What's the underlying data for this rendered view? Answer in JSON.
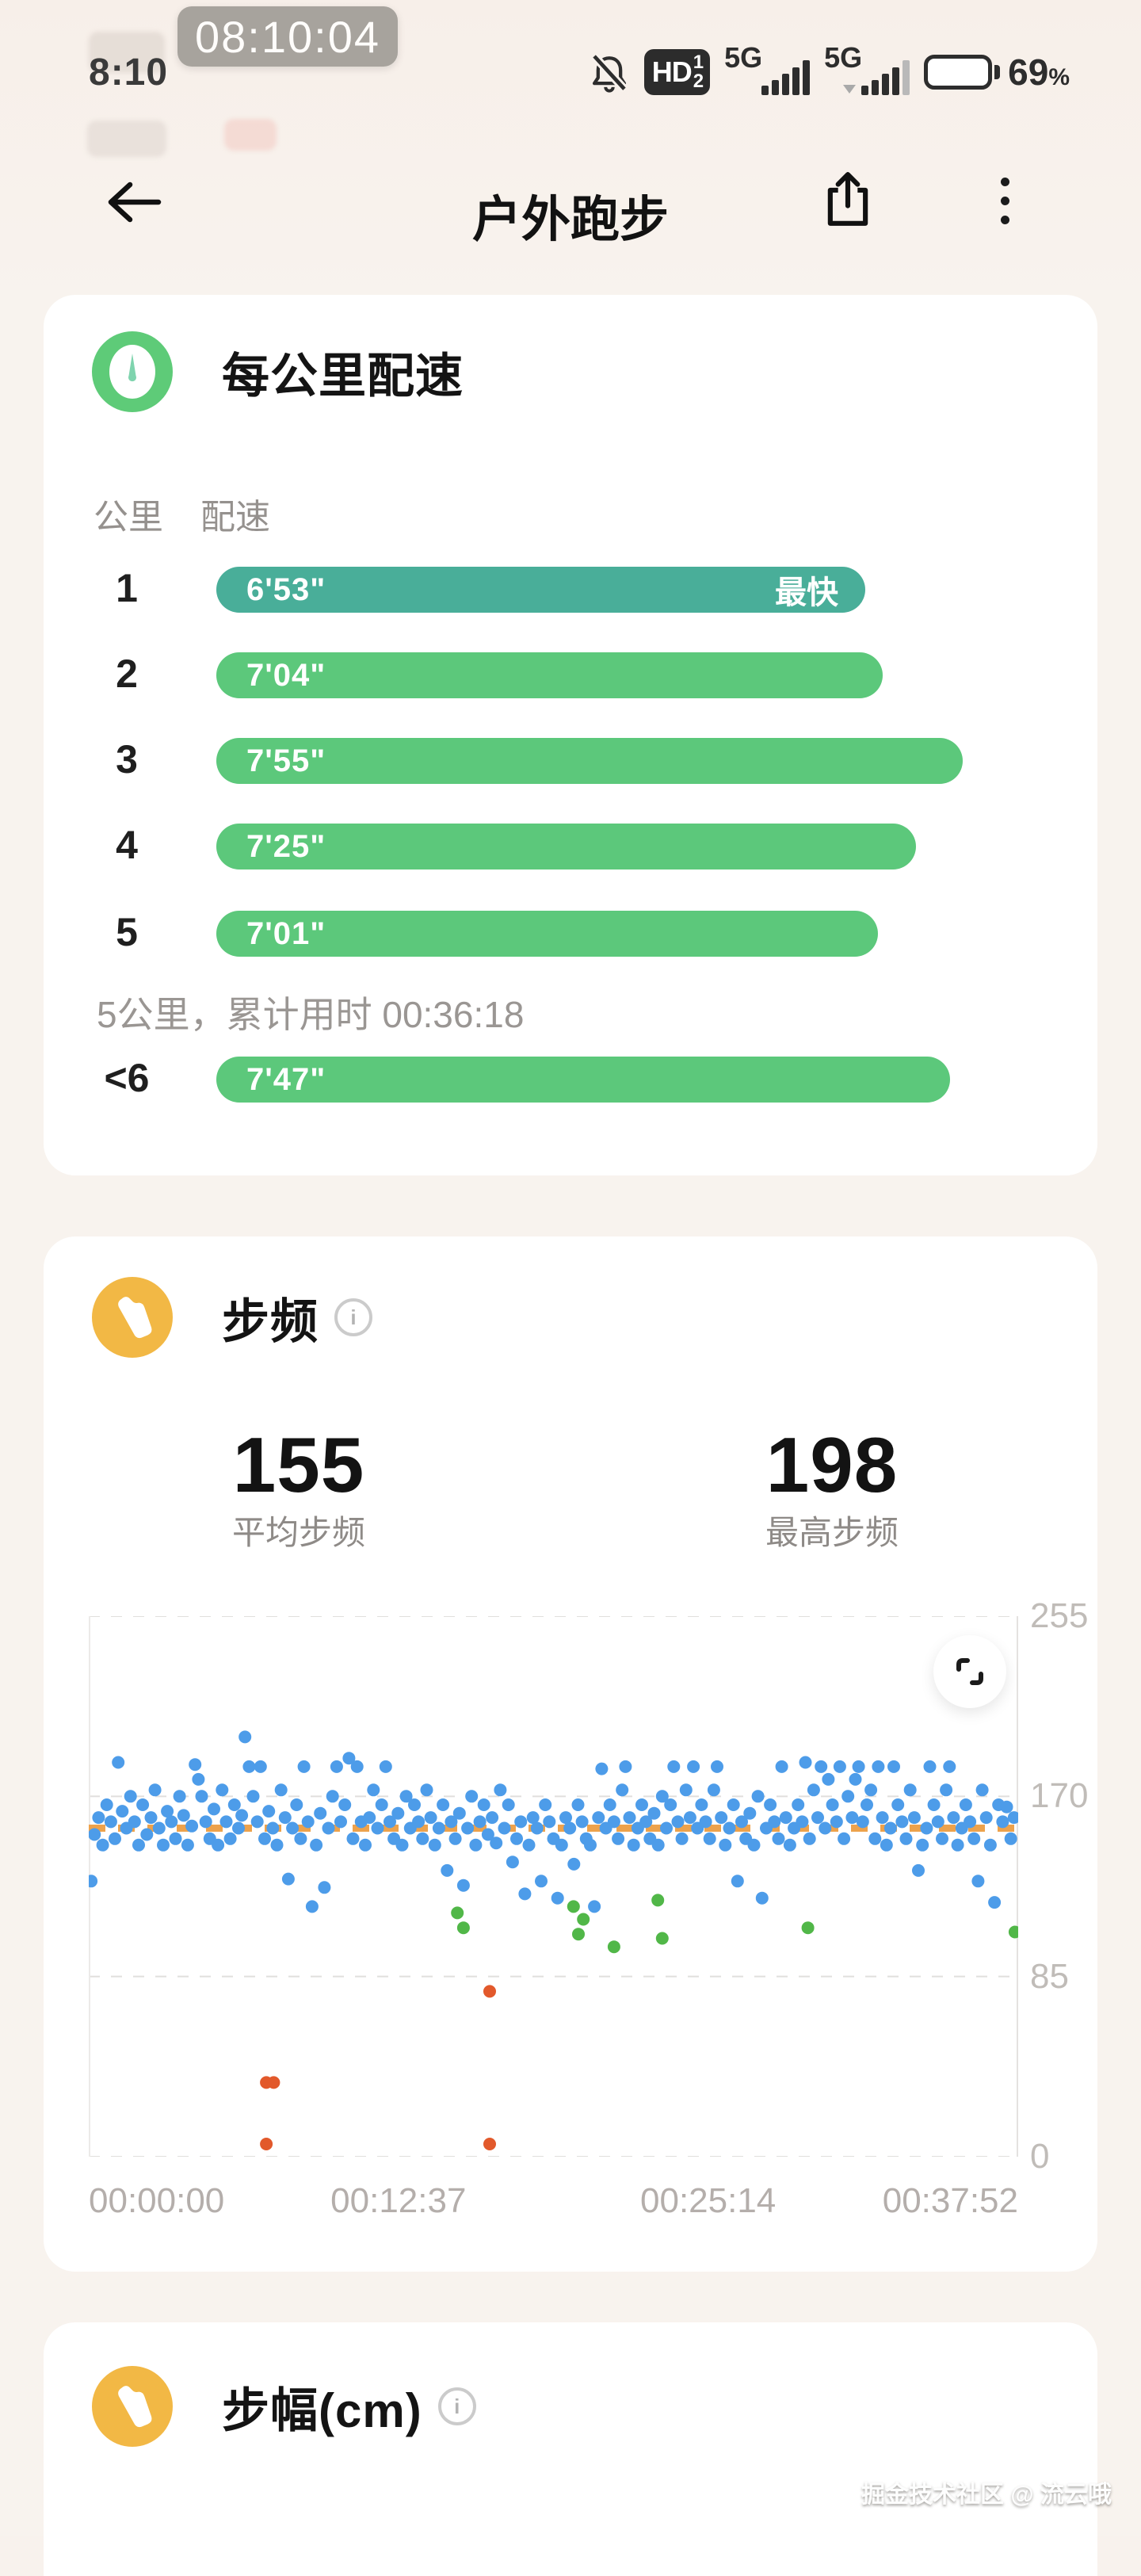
{
  "status_bar": {
    "time": "8:10",
    "overlay_time": "08:10:04",
    "hd_label": "HD",
    "hd_sup": "1",
    "hd_sub": "2",
    "network1": "5G",
    "network2": "5G",
    "battery_percent": "69",
    "percent_sign": "%",
    "battery_color": "#eeb04b"
  },
  "header": {
    "title": "户外跑步"
  },
  "ghosts": {
    "text1": "手气",
    "text2": "倾听"
  },
  "pace_card": {
    "title": "每公里配速",
    "col_km": "公里",
    "col_pace": "配速",
    "fastest_label": "最快",
    "summary": "5公里，累计用时 00:36:18",
    "max_seconds": 475,
    "bar_colors": {
      "fastest": "#49ae99",
      "normal": "#5cc87b"
    },
    "rows": [
      {
        "km": "1",
        "pace": "6'53\"",
        "seconds": 413,
        "fastest": true
      },
      {
        "km": "2",
        "pace": "7'04\"",
        "seconds": 424,
        "fastest": false
      },
      {
        "km": "3",
        "pace": "7'55\"",
        "seconds": 475,
        "fastest": false
      },
      {
        "km": "4",
        "pace": "7'25\"",
        "seconds": 445,
        "fastest": false
      },
      {
        "km": "5",
        "pace": "7'01\"",
        "seconds": 421,
        "fastest": false
      },
      {
        "km": "<6",
        "pace": "7'47\"",
        "seconds": 467,
        "fastest": false
      }
    ]
  },
  "cadence_card": {
    "title": "步频",
    "stats": [
      {
        "value": "155",
        "label": "平均步频"
      },
      {
        "value": "198",
        "label": "最高步频"
      }
    ],
    "chart_data": {
      "type": "scatter",
      "title": "",
      "xlabel": "",
      "ylabel": "",
      "ylim": [
        0,
        255
      ],
      "yticks": [
        255,
        170,
        85,
        0
      ],
      "x_range_seconds": [
        0,
        2272
      ],
      "xtick_labels": [
        "00:00:00",
        "00:12:37",
        "00:25:14",
        "00:37:52"
      ],
      "xtick_seconds": [
        0,
        757,
        1514,
        2272
      ],
      "average_line": 155,
      "average_line_color": "#eda24c",
      "grid": "dashed-horizontal",
      "legend": "none",
      "series": [
        {
          "name": "cadence-normal",
          "color": "#4d9ce9",
          "points": [
            [
              6,
              130
            ],
            [
              14,
              152
            ],
            [
              24,
              160
            ],
            [
              34,
              147
            ],
            [
              44,
              166
            ],
            [
              54,
              158
            ],
            [
              64,
              150
            ],
            [
              72,
              186
            ],
            [
              82,
              163
            ],
            [
              92,
              155
            ],
            [
              102,
              170
            ],
            [
              112,
              158
            ],
            [
              122,
              147
            ],
            [
              132,
              166
            ],
            [
              142,
              152
            ],
            [
              152,
              160
            ],
            [
              162,
              173
            ],
            [
              172,
              155
            ],
            [
              182,
              147
            ],
            [
              192,
              163
            ],
            [
              202,
              158
            ],
            [
              212,
              150
            ],
            [
              222,
              170
            ],
            [
              232,
              161
            ],
            [
              242,
              147
            ],
            [
              252,
              156
            ],
            [
              260,
              185
            ],
            [
              268,
              178
            ],
            [
              276,
              170
            ],
            [
              286,
              158
            ],
            [
              296,
              150
            ],
            [
              306,
              164
            ],
            [
              316,
              147
            ],
            [
              326,
              173
            ],
            [
              336,
              158
            ],
            [
              346,
              150
            ],
            [
              356,
              166
            ],
            [
              366,
              155
            ],
            [
              374,
              161
            ],
            [
              382,
              198
            ],
            [
              392,
              184
            ],
            [
              402,
              170
            ],
            [
              412,
              158
            ],
            [
              420,
              184
            ],
            [
              430,
              150
            ],
            [
              440,
              163
            ],
            [
              450,
              155
            ],
            [
              460,
              147
            ],
            [
              470,
              173
            ],
            [
              480,
              160
            ],
            [
              488,
              131
            ],
            [
              498,
              155
            ],
            [
              508,
              166
            ],
            [
              518,
              150
            ],
            [
              526,
              184
            ],
            [
              536,
              158
            ],
            [
              546,
              118
            ],
            [
              556,
              147
            ],
            [
              566,
              162
            ],
            [
              576,
              127
            ],
            [
              586,
              155
            ],
            [
              596,
              170
            ],
            [
              606,
              184
            ],
            [
              616,
              158
            ],
            [
              626,
              166
            ],
            [
              636,
              188
            ],
            [
              646,
              150
            ],
            [
              656,
              184
            ],
            [
              666,
              158
            ],
            [
              676,
              147
            ],
            [
              686,
              160
            ],
            [
              696,
              173
            ],
            [
              706,
              155
            ],
            [
              716,
              166
            ],
            [
              726,
              184
            ],
            [
              736,
              158
            ],
            [
              746,
              150
            ],
            [
              756,
              162
            ],
            [
              766,
              147
            ],
            [
              776,
              170
            ],
            [
              786,
              155
            ],
            [
              796,
              166
            ],
            [
              806,
              158
            ],
            [
              816,
              150
            ],
            [
              826,
              173
            ],
            [
              836,
              160
            ],
            [
              846,
              147
            ],
            [
              856,
              155
            ],
            [
              866,
              166
            ],
            [
              876,
              135
            ],
            [
              886,
              158
            ],
            [
              896,
              150
            ],
            [
              906,
              162
            ],
            [
              916,
              128
            ],
            [
              926,
              155
            ],
            [
              936,
              170
            ],
            [
              946,
              147
            ],
            [
              956,
              158
            ],
            [
              966,
              166
            ],
            [
              976,
              152
            ],
            [
              986,
              160
            ],
            [
              996,
              148
            ],
            [
              1006,
              173
            ],
            [
              1016,
              155
            ],
            [
              1026,
              166
            ],
            [
              1036,
              139
            ],
            [
              1046,
              150
            ],
            [
              1056,
              158
            ],
            [
              1066,
              124
            ],
            [
              1076,
              147
            ],
            [
              1086,
              160
            ],
            [
              1096,
              155
            ],
            [
              1106,
              130
            ],
            [
              1116,
              166
            ],
            [
              1126,
              158
            ],
            [
              1136,
              150
            ],
            [
              1146,
              122
            ],
            [
              1156,
              147
            ],
            [
              1166,
              160
            ],
            [
              1176,
              155
            ],
            [
              1186,
              138
            ],
            [
              1196,
              166
            ],
            [
              1206,
              158
            ],
            [
              1216,
              150
            ],
            [
              1226,
              147
            ],
            [
              1236,
              118
            ],
            [
              1246,
              160
            ],
            [
              1254,
              183
            ],
            [
              1264,
              155
            ],
            [
              1274,
              166
            ],
            [
              1284,
              158
            ],
            [
              1294,
              150
            ],
            [
              1304,
              173
            ],
            [
              1312,
              184
            ],
            [
              1322,
              160
            ],
            [
              1332,
              147
            ],
            [
              1342,
              155
            ],
            [
              1352,
              166
            ],
            [
              1362,
              158
            ],
            [
              1372,
              150
            ],
            [
              1382,
              162
            ],
            [
              1392,
              147
            ],
            [
              1402,
              170
            ],
            [
              1412,
              155
            ],
            [
              1422,
              166
            ],
            [
              1430,
              184
            ],
            [
              1440,
              158
            ],
            [
              1450,
              150
            ],
            [
              1460,
              173
            ],
            [
              1470,
              160
            ],
            [
              1478,
              184
            ],
            [
              1488,
              155
            ],
            [
              1498,
              166
            ],
            [
              1508,
              158
            ],
            [
              1518,
              150
            ],
            [
              1528,
              173
            ],
            [
              1536,
              184
            ],
            [
              1546,
              160
            ],
            [
              1556,
              147
            ],
            [
              1566,
              155
            ],
            [
              1576,
              166
            ],
            [
              1586,
              130
            ],
            [
              1596,
              158
            ],
            [
              1606,
              150
            ],
            [
              1616,
              162
            ],
            [
              1626,
              147
            ],
            [
              1636,
              170
            ],
            [
              1646,
              122
            ],
            [
              1656,
              155
            ],
            [
              1666,
              166
            ],
            [
              1676,
              158
            ],
            [
              1686,
              150
            ],
            [
              1694,
              184
            ],
            [
              1704,
              160
            ],
            [
              1714,
              147
            ],
            [
              1724,
              155
            ],
            [
              1734,
              166
            ],
            [
              1744,
              158
            ],
            [
              1752,
              186
            ],
            [
              1762,
              150
            ],
            [
              1772,
              173
            ],
            [
              1782,
              160
            ],
            [
              1790,
              184
            ],
            [
              1800,
              155
            ],
            [
              1808,
              178
            ],
            [
              1818,
              166
            ],
            [
              1828,
              158
            ],
            [
              1836,
              184
            ],
            [
              1846,
              150
            ],
            [
              1856,
              170
            ],
            [
              1866,
              160
            ],
            [
              1874,
              178
            ],
            [
              1882,
              184
            ],
            [
              1892,
              158
            ],
            [
              1902,
              166
            ],
            [
              1912,
              173
            ],
            [
              1922,
              150
            ],
            [
              1930,
              184
            ],
            [
              1940,
              160
            ],
            [
              1950,
              147
            ],
            [
              1960,
              155
            ],
            [
              1968,
              184
            ],
            [
              1978,
              166
            ],
            [
              1988,
              158
            ],
            [
              1998,
              150
            ],
            [
              2008,
              173
            ],
            [
              2018,
              160
            ],
            [
              2028,
              135
            ],
            [
              2038,
              147
            ],
            [
              2048,
              155
            ],
            [
              2056,
              184
            ],
            [
              2066,
              166
            ],
            [
              2076,
              158
            ],
            [
              2086,
              150
            ],
            [
              2096,
              173
            ],
            [
              2104,
              184
            ],
            [
              2114,
              160
            ],
            [
              2124,
              147
            ],
            [
              2134,
              155
            ],
            [
              2144,
              166
            ],
            [
              2154,
              158
            ],
            [
              2164,
              150
            ],
            [
              2174,
              130
            ],
            [
              2184,
              173
            ],
            [
              2194,
              160
            ],
            [
              2204,
              147
            ],
            [
              2214,
              120
            ],
            [
              2224,
              166
            ],
            [
              2234,
              158
            ],
            [
              2244,
              165
            ],
            [
              2254,
              150
            ],
            [
              2262,
              160
            ]
          ]
        },
        {
          "name": "cadence-low",
          "color": "#51b748",
          "points": [
            [
              901,
              115
            ],
            [
              916,
              108
            ],
            [
              1185,
              118
            ],
            [
              1197,
              105
            ],
            [
              1209,
              112
            ],
            [
              1284,
              99
            ],
            [
              1391,
              121
            ],
            [
              1402,
              103
            ],
            [
              1758,
              108
            ],
            [
              2264,
              106
            ]
          ]
        },
        {
          "name": "cadence-anomaly",
          "color": "#e2592b",
          "points": [
            [
              434,
              35
            ],
            [
              452,
              35
            ],
            [
              980,
              78
            ],
            [
              434,
              6
            ],
            [
              980,
              6
            ]
          ]
        }
      ]
    }
  },
  "stride_card": {
    "title": "步幅(cm)"
  },
  "watermark": "掘金技术社区 @ 流云哦"
}
